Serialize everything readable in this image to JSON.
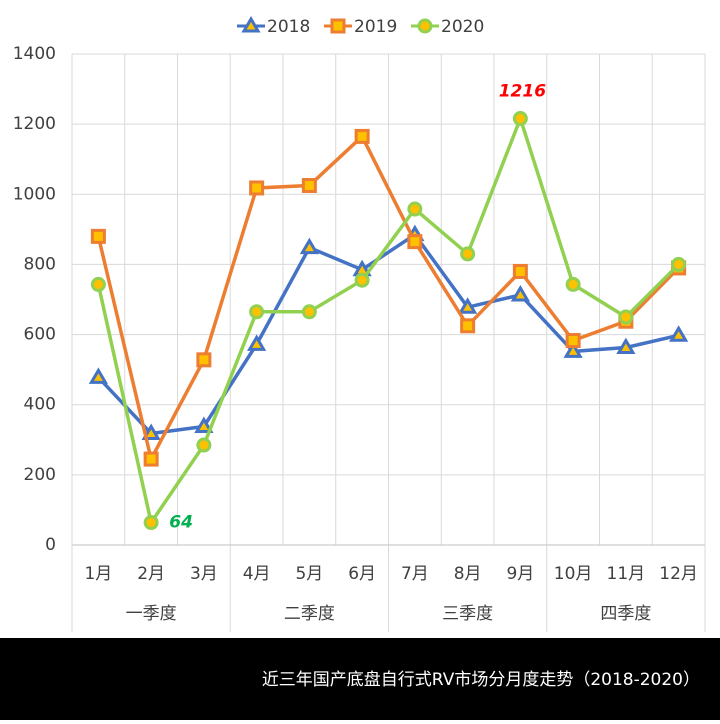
{
  "chart_data": {
    "type": "line",
    "categories": [
      "1月",
      "2月",
      "3月",
      "4月",
      "5月",
      "6月",
      "7月",
      "8月",
      "9月",
      "10月",
      "11月",
      "12月"
    ],
    "groups": [
      "一季度",
      "二季度",
      "三季度",
      "四季度"
    ],
    "series": [
      {
        "name": "2018",
        "color": "#4472c4",
        "marker": "triangle",
        "values": [
          478,
          318,
          338,
          572,
          848,
          785,
          885,
          678,
          713,
          552,
          563,
          598
        ]
      },
      {
        "name": "2019",
        "color": "#ed7d31",
        "marker": "square",
        "values": [
          880,
          245,
          528,
          1018,
          1025,
          1165,
          865,
          625,
          780,
          583,
          638,
          790
        ]
      },
      {
        "name": "2020",
        "color": "#92d050",
        "marker": "circle",
        "values": [
          743,
          64,
          285,
          665,
          665,
          755,
          958,
          830,
          1216,
          743,
          650,
          800
        ],
        "value_labels": [
          null,
          "64",
          null,
          null,
          null,
          null,
          null,
          null,
          "1216",
          null,
          null,
          null
        ]
      }
    ],
    "ylim": [
      0,
      1400
    ],
    "yticks": [
      0,
      200,
      400,
      600,
      800,
      1000,
      1200,
      1400
    ],
    "grid": true,
    "legend": "top",
    "caption": "近三年国产底盘自行式RV市场分月度走势（2018-2020）"
  }
}
